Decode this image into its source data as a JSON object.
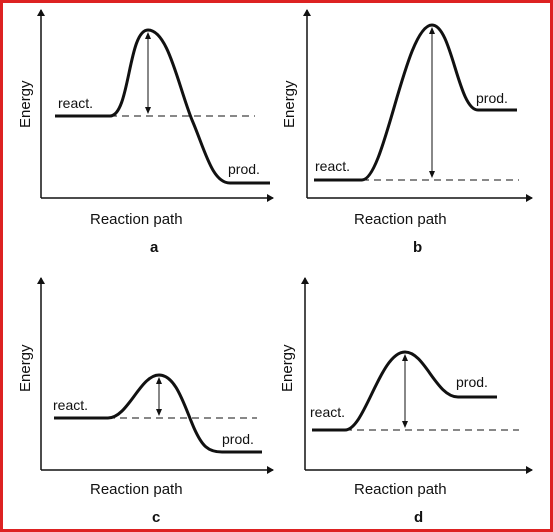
{
  "colors": {
    "border": "#dd2222",
    "ink": "#111111"
  },
  "panels": [
    {
      "letter": "a",
      "y_label": "Energy",
      "x_label": "Reaction path",
      "reactant_label": "react.",
      "product_label": "prod."
    },
    {
      "letter": "b",
      "y_label": "Energy",
      "x_label": "Reaction path",
      "reactant_label": "react.",
      "product_label": "prod."
    },
    {
      "letter": "c",
      "y_label": "Energy",
      "x_label": "Reaction path",
      "reactant_label": "react.",
      "product_label": "prod."
    },
    {
      "letter": "d",
      "y_label": "Energy",
      "x_label": "Reaction path",
      "reactant_label": "react.",
      "product_label": "prod."
    }
  ]
}
